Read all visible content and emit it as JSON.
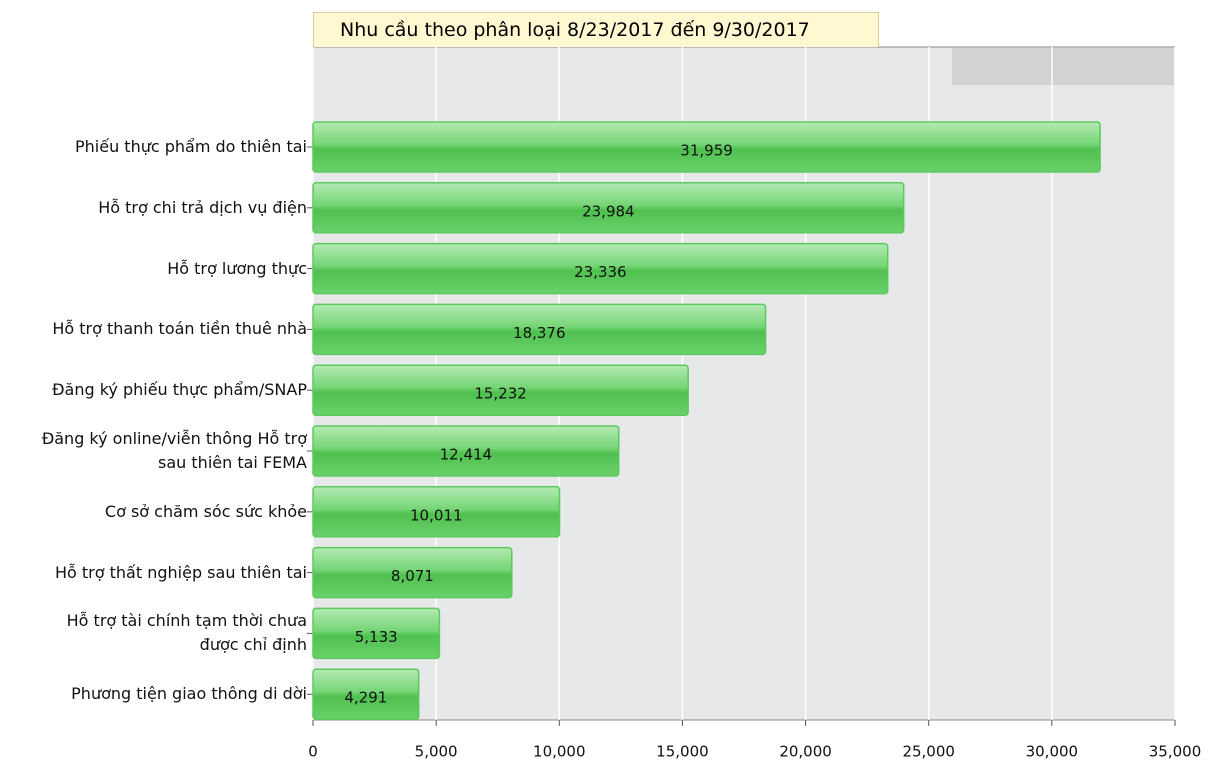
{
  "chart_data": {
    "type": "barh",
    "title": "Nhu cầu theo phân loại 8/23/2017 đến 9/30/2017",
    "categories": [
      "Phiếu thực phẩm do thiên tai",
      "Hỗ trợ chi trả dịch vụ điện",
      "Hỗ trợ lương thực",
      "Hỗ trợ thanh toán tiền thuê nhà",
      "Đăng ký phiếu thực phẩm/SNAP",
      "Đăng ký online/viễn thông Hỗ trợ\nsau thiên tai FEMA",
      "Cơ sở chăm sóc sức khỏe",
      "Hỗ trợ thất nghiệp sau thiên tai",
      "Hỗ trợ tài chính tạm thời chưa\nđược chỉ định",
      "Phương tiện giao thông di dời"
    ],
    "values": [
      31959,
      23984,
      23336,
      18376,
      15232,
      12414,
      10011,
      8071,
      5133,
      4291
    ],
    "value_labels": [
      "31,959",
      "23,984",
      "23,336",
      "18,376",
      "15,232",
      "12,414",
      "10,011",
      "8,071",
      "5,133",
      "4,291"
    ],
    "color": "#5cc95c",
    "xlim": [
      0,
      35000
    ],
    "xticks": [
      0,
      {
        "value": 5000,
        "label": "5,000"
      },
      {
        "value": 10000,
        "label": "10,000"
      },
      {
        "value": 15000,
        "label": "15,000"
      },
      {
        "value": 20000,
        "label": "20,000"
      },
      {
        "value": 25000,
        "label": "25,000"
      },
      {
        "value": 30000,
        "label": "30,000"
      },
      {
        "value": 35000,
        "label": "35,000"
      }
    ],
    "grid": true
  }
}
